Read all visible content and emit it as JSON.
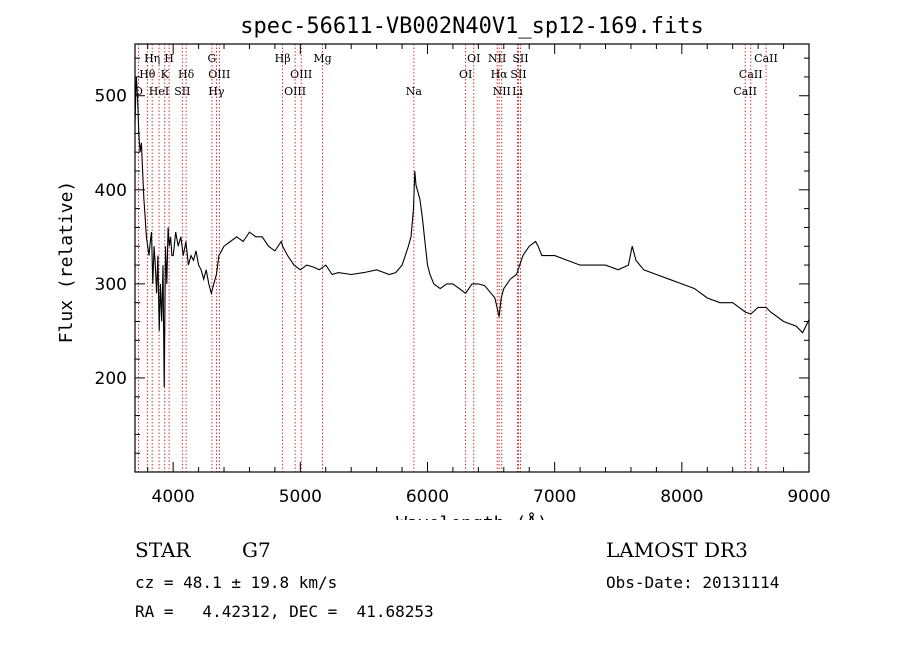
{
  "chart_data": {
    "type": "line",
    "title": "spec-56611-VB002N40V1_sp12-169.fits",
    "xlabel": "Wavelength (Å)",
    "ylabel": "Flux (relative)",
    "xlim": [
      3700,
      9000
    ],
    "ylim": [
      100,
      555
    ],
    "x_ticks": [
      4000,
      5000,
      6000,
      7000,
      8000,
      9000
    ],
    "y_ticks": [
      200,
      300,
      400,
      500
    ],
    "grid": false,
    "line_color": "#000000",
    "marker_color": "#cc0000",
    "series": [
      {
        "name": "flux",
        "x": [
          3700,
          3710,
          3720,
          3730,
          3740,
          3750,
          3760,
          3770,
          3780,
          3790,
          3800,
          3810,
          3820,
          3830,
          3840,
          3850,
          3860,
          3870,
          3880,
          3890,
          3900,
          3910,
          3920,
          3930,
          3940,
          3950,
          3960,
          3970,
          3980,
          3990,
          4000,
          4020,
          4040,
          4060,
          4080,
          4100,
          4120,
          4140,
          4160,
          4180,
          4200,
          4220,
          4240,
          4260,
          4280,
          4300,
          4320,
          4340,
          4360,
          4380,
          4400,
          4450,
          4500,
          4550,
          4600,
          4650,
          4700,
          4750,
          4800,
          4850,
          4861,
          4900,
          4950,
          5000,
          5050,
          5100,
          5150,
          5200,
          5250,
          5300,
          5400,
          5500,
          5600,
          5700,
          5750,
          5800,
          5850,
          5870,
          5890,
          5900,
          5910,
          5920,
          5940,
          5960,
          5980,
          6000,
          6020,
          6050,
          6100,
          6150,
          6200,
          6250,
          6300,
          6350,
          6400,
          6450,
          6500,
          6530,
          6563,
          6580,
          6600,
          6650,
          6700,
          6750,
          6800,
          6850,
          6870,
          6900,
          6950,
          7000,
          7100,
          7200,
          7300,
          7400,
          7500,
          7580,
          7610,
          7640,
          7700,
          7800,
          7900,
          8000,
          8100,
          8200,
          8300,
          8400,
          8500,
          8542,
          8600,
          8662,
          8700,
          8800,
          8900,
          8950,
          9000
        ],
        "values": [
          470,
          520,
          500,
          460,
          440,
          450,
          420,
          390,
          370,
          350,
          340,
          330,
          345,
          355,
          300,
          340,
          320,
          290,
          330,
          250,
          300,
          260,
          320,
          190,
          340,
          300,
          360,
          340,
          350,
          330,
          330,
          355,
          340,
          350,
          330,
          345,
          320,
          330,
          325,
          335,
          320,
          315,
          305,
          315,
          300,
          290,
          300,
          310,
          330,
          335,
          340,
          345,
          350,
          345,
          355,
          350,
          350,
          340,
          335,
          345,
          340,
          330,
          320,
          315,
          320,
          318,
          315,
          320,
          310,
          312,
          310,
          312,
          315,
          310,
          312,
          320,
          340,
          350,
          380,
          420,
          405,
          400,
          390,
          370,
          345,
          320,
          310,
          300,
          295,
          300,
          300,
          295,
          290,
          300,
          300,
          298,
          290,
          285,
          265,
          285,
          295,
          305,
          310,
          330,
          340,
          345,
          340,
          330,
          330,
          330,
          325,
          320,
          320,
          320,
          315,
          320,
          340,
          325,
          315,
          310,
          305,
          300,
          295,
          285,
          280,
          280,
          270,
          268,
          275,
          275,
          270,
          260,
          255,
          248,
          262
        ]
      }
    ],
    "line_markers": [
      {
        "label": "Hη",
        "wavelength": 3835,
        "row": 1
      },
      {
        "label": "H",
        "wavelength": 3968,
        "row": 1
      },
      {
        "label": "Hθ",
        "wavelength": 3797,
        "row": 2
      },
      {
        "label": "K",
        "wavelength": 3934,
        "row": 2
      },
      {
        "label": "O",
        "wavelength": 3727,
        "row": 3
      },
      {
        "label": "HeI",
        "wavelength": 3889,
        "row": 3
      },
      {
        "label": "SII",
        "wavelength": 4072,
        "row": 3
      },
      {
        "label": "Hδ",
        "wavelength": 4102,
        "row": 2
      },
      {
        "label": "G",
        "wavelength": 4305,
        "row": 1
      },
      {
        "label": "OIII",
        "wavelength": 4363,
        "row": 2
      },
      {
        "label": "Hγ",
        "wavelength": 4340,
        "row": 3
      },
      {
        "label": "Hβ",
        "wavelength": 4861,
        "row": 1
      },
      {
        "label": "OIII",
        "wavelength": 4959,
        "row": 3
      },
      {
        "label": "OIII",
        "wavelength": 5007,
        "row": 2
      },
      {
        "label": "Mg",
        "wavelength": 5175,
        "row": 1
      },
      {
        "label": "Na",
        "wavelength": 5893,
        "row": 3
      },
      {
        "label": "OI",
        "wavelength": 6300,
        "row": 2
      },
      {
        "label": "OI",
        "wavelength": 6364,
        "row": 1
      },
      {
        "label": "NII",
        "wavelength": 6548,
        "row": 1
      },
      {
        "label": "NII",
        "wavelength": 6584,
        "row": 3
      },
      {
        "label": "Hα",
        "wavelength": 6563,
        "row": 2
      },
      {
        "label": "SII",
        "wavelength": 6716,
        "row": 2
      },
      {
        "label": "SII",
        "wavelength": 6731,
        "row": 1
      },
      {
        "label": "Li",
        "wavelength": 6708,
        "row": 3
      },
      {
        "label": "CaII",
        "wavelength": 8498,
        "row": 3
      },
      {
        "label": "CaII",
        "wavelength": 8542,
        "row": 2
      },
      {
        "label": "CaII",
        "wavelength": 8662,
        "row": 1
      }
    ]
  },
  "info": {
    "object_class": "STAR",
    "subclass": "G7",
    "survey": "LAMOST DR3",
    "redshift_line": "cz = 48.1 ± 19.8 km/s",
    "obs_date_line": "Obs-Date: 20131114",
    "coords_line": "RA =   4.42312, DEC =  41.68253"
  }
}
